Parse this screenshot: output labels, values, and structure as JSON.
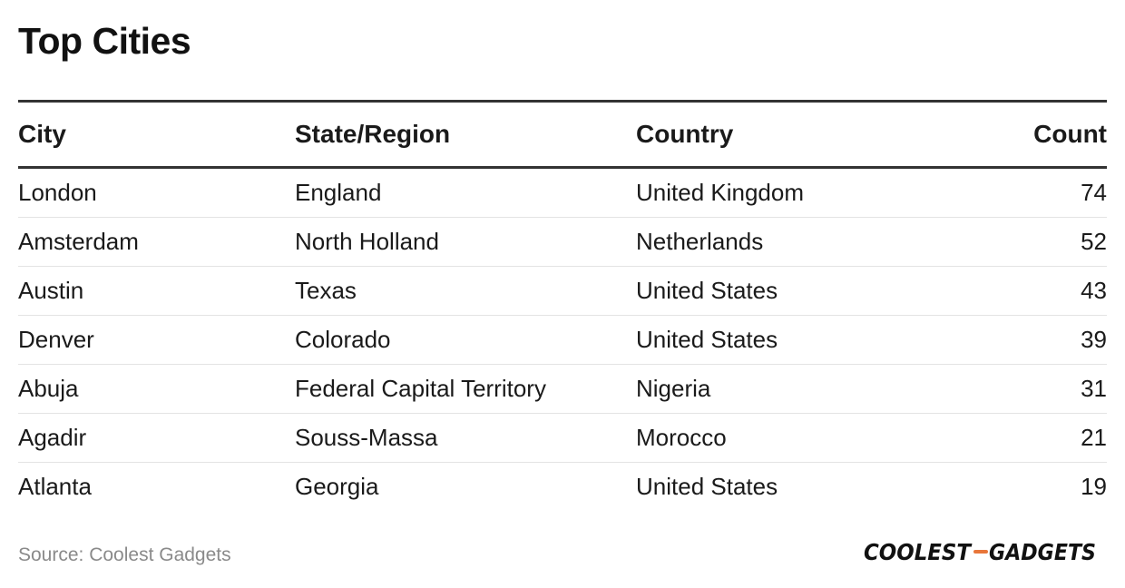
{
  "title": "Top Cities",
  "source": "Source: Coolest Gadgets",
  "logo": {
    "left_text": "COOLEST",
    "right_text": "GADGETS",
    "accent_color": "#e8763a"
  },
  "chart_data": {
    "type": "table",
    "title": "Top Cities",
    "columns": [
      "City",
      "State/Region",
      "Country",
      "Count"
    ],
    "rows": [
      [
        "London",
        "England",
        "United Kingdom",
        "74"
      ],
      [
        "Amsterdam",
        "North Holland",
        "Netherlands",
        "52"
      ],
      [
        "Austin",
        "Texas",
        "United States",
        "43"
      ],
      [
        "Denver",
        "Colorado",
        "United States",
        "39"
      ],
      [
        "Abuja",
        "Federal Capital Territory",
        "Nigeria",
        "31"
      ],
      [
        "Agadir",
        "Souss-Massa",
        "Morocco",
        "21"
      ],
      [
        "Atlanta",
        "Georgia",
        "United States",
        "19"
      ]
    ]
  }
}
